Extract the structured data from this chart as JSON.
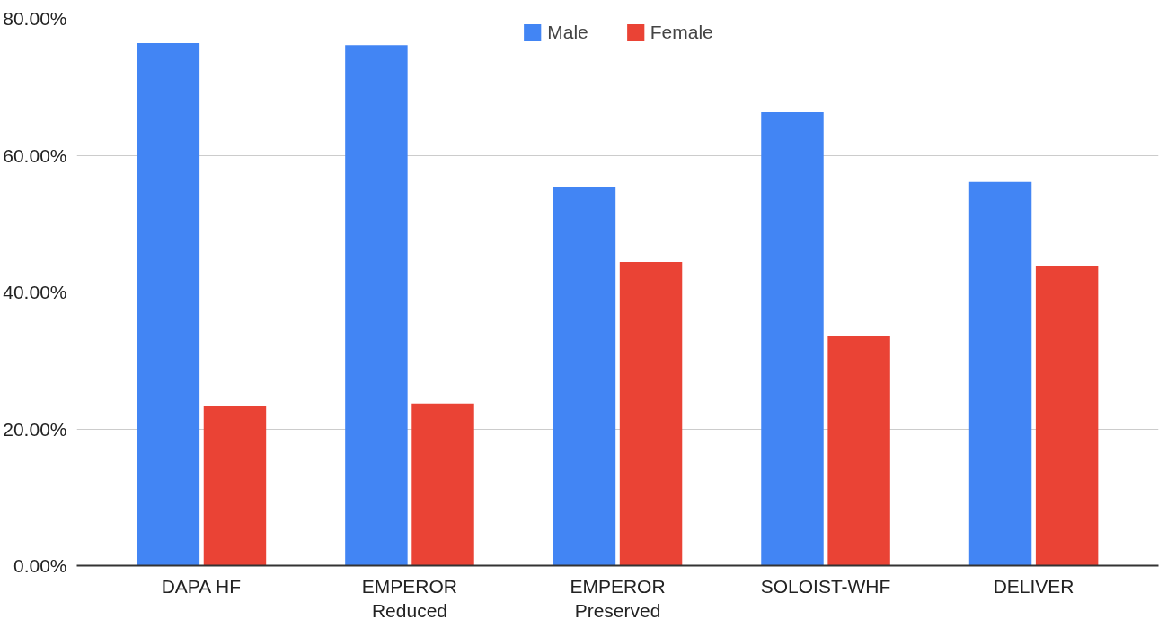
{
  "chart_data": {
    "type": "bar",
    "categories": [
      "DAPA HF",
      "EMPEROR\nReduced",
      "EMPEROR\nPreserved",
      "SOLOIST-WHF",
      "DELIVER"
    ],
    "series": [
      {
        "name": "Male",
        "color": "#4285f4",
        "values": [
          76.4,
          76.1,
          55.4,
          66.3,
          56.1
        ]
      },
      {
        "name": "Female",
        "color": "#ea4335",
        "values": [
          23.4,
          23.7,
          44.4,
          33.6,
          43.8
        ]
      }
    ],
    "ylim": [
      0,
      80
    ],
    "yticks": [
      {
        "value": 0,
        "label": "0.00%"
      },
      {
        "value": 20,
        "label": "20.00%"
      },
      {
        "value": 40,
        "label": "40.00%"
      },
      {
        "value": 60,
        "label": "60.00%"
      },
      {
        "value": 80,
        "label": "80.00%"
      }
    ],
    "grid": "y",
    "legend": "top"
  }
}
